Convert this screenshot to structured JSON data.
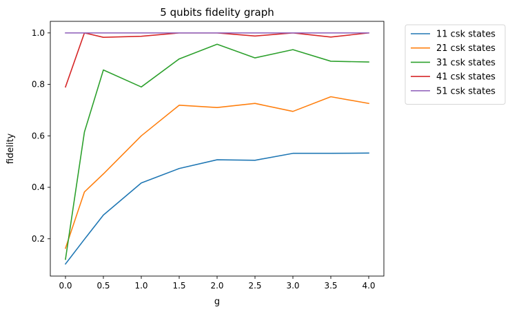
{
  "chart_data": {
    "type": "line",
    "title": "5 qubits fidelity graph",
    "xlabel": "g",
    "ylabel": "fidelity",
    "x": [
      0.0,
      0.25,
      0.5,
      1.0,
      1.5,
      2.0,
      2.5,
      3.0,
      3.5,
      4.0
    ],
    "xlim": [
      -0.2,
      4.2
    ],
    "ylim": [
      0.055,
      1.045
    ],
    "xticks": [
      "0.0",
      "0.5",
      "1.0",
      "1.5",
      "2.0",
      "2.5",
      "3.0",
      "3.5",
      "4.0"
    ],
    "yticks": [
      "0.2",
      "0.4",
      "0.6",
      "0.8",
      "1.0"
    ],
    "grid": false,
    "legend_position": "outside-top-right",
    "series": [
      {
        "name": "11 csk states",
        "color": "#1f77b4",
        "values": [
          0.102,
          0.198,
          0.292,
          0.417,
          0.473,
          0.507,
          0.505,
          0.532,
          0.532,
          0.533
        ]
      },
      {
        "name": "21 csk states",
        "color": "#ff7f0e",
        "values": [
          0.163,
          0.382,
          0.452,
          0.6,
          0.719,
          0.71,
          0.726,
          0.695,
          0.752,
          0.726
        ]
      },
      {
        "name": "31 csk states",
        "color": "#2ca02c",
        "values": [
          0.12,
          0.615,
          0.856,
          0.79,
          0.899,
          0.956,
          0.903,
          0.935,
          0.89,
          0.887
        ]
      },
      {
        "name": "41 csk states",
        "color": "#d62728",
        "values": [
          0.79,
          1.0,
          0.983,
          0.987,
          1.0,
          1.0,
          0.988,
          1.0,
          0.984,
          1.0
        ]
      },
      {
        "name": "51 csk states",
        "color": "#9467bd",
        "values": [
          1.0,
          1.0,
          1.0,
          1.0,
          1.0,
          1.0,
          1.0,
          1.0,
          1.0,
          1.0
        ]
      }
    ]
  }
}
